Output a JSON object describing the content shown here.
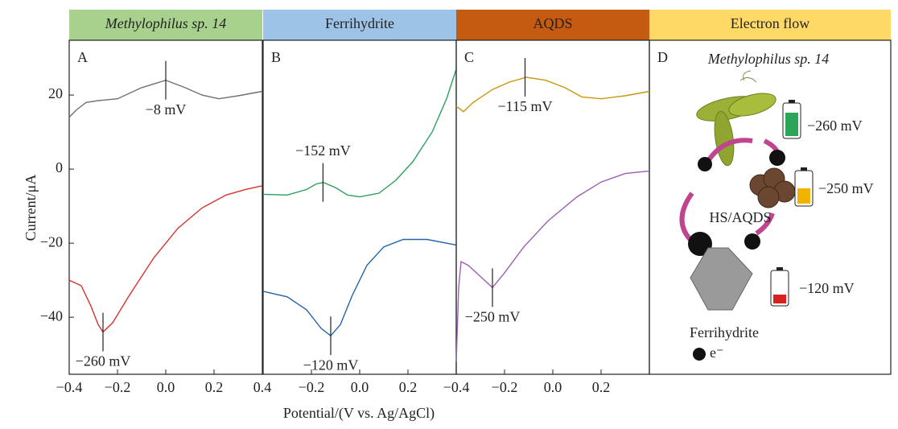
{
  "figure": {
    "y_label": "Current/μA",
    "x_label": "Potential/(V vs. Ag/AgCl)"
  },
  "chart_data": [
    {
      "type": "line",
      "title": "Methylophilus sp. 14",
      "panel": "A",
      "header_color": "#a9d18e",
      "xlim": [
        -0.4,
        0.4
      ],
      "xticks": [
        {
          "value": -0.4,
          "label": "−0.4"
        },
        {
          "value": -0.2,
          "label": "−0.2"
        },
        {
          "value": 0,
          "label": "0.0"
        },
        0.2,
        0.4
      ],
      "ylim": [
        -55.4,
        34.8
      ],
      "yticks": [
        20,
        0,
        {
          "value": -20,
          "label": "−20"
        },
        {
          "value": -40,
          "label": "−40"
        }
      ],
      "series": [
        {
          "color": "#707070",
          "x": [
            -0.4,
            -0.37,
            -0.33,
            -0.28,
            -0.2,
            -0.1,
            0,
            0.08,
            0.15,
            0.22,
            0.3,
            0.4
          ],
          "values": [
            14,
            16,
            18,
            18.5,
            19,
            22,
            24,
            22,
            20,
            19,
            19.8,
            21
          ]
        },
        {
          "color": "#d8312c",
          "x": [
            -0.4,
            -0.35,
            -0.31,
            -0.28,
            -0.26,
            -0.22,
            -0.15,
            -0.05,
            0.05,
            0.15,
            0.25,
            0.33,
            0.4
          ],
          "values": [
            -30,
            -31.5,
            -37,
            -42,
            -44,
            -41.5,
            -34,
            -24,
            -16,
            -10.5,
            -7,
            -5.5,
            -4.5
          ]
        }
      ],
      "annotations": [
        {
          "label": "−8 mV",
          "x": 0,
          "y": 24,
          "position": "below"
        },
        {
          "label": "−260 mV",
          "x": -0.26,
          "y": -44,
          "position": "below"
        }
      ]
    },
    {
      "type": "line",
      "title": "Ferrihydrite",
      "panel": "B",
      "header_color": "#9dc3e6",
      "xlim": [
        -0.4,
        0.4
      ],
      "xticks": [
        {
          "value": -0.2,
          "label": "−0.2"
        },
        {
          "value": 0,
          "label": "0.0"
        },
        0.2
      ],
      "ylim": [
        -55.4,
        34.8
      ],
      "series": [
        {
          "color": "#2aa05a",
          "x": [
            -0.4,
            -0.3,
            -0.22,
            -0.18,
            -0.15,
            -0.1,
            -0.05,
            0,
            0.08,
            0.15,
            0.22,
            0.3,
            0.36,
            0.4
          ],
          "values": [
            -6.8,
            -7,
            -5.5,
            -4,
            -3.6,
            -5,
            -7,
            -7.5,
            -6.5,
            -3,
            2,
            10,
            19,
            27
          ]
        },
        {
          "color": "#2265a8",
          "x": [
            -0.4,
            -0.3,
            -0.22,
            -0.16,
            -0.12,
            -0.08,
            -0.03,
            0.03,
            0.1,
            0.18,
            0.28,
            0.4
          ],
          "values": [
            -33,
            -34.5,
            -38,
            -43,
            -45,
            -42,
            -34,
            -26,
            -21,
            -19,
            -19,
            -20.5
          ]
        }
      ],
      "annotations": [
        {
          "label": "−152 mV",
          "x": -0.152,
          "y": -3.6,
          "position": "above"
        },
        {
          "label": "−120 mV",
          "x": -0.12,
          "y": -45,
          "position": "below"
        }
      ]
    },
    {
      "type": "line",
      "title": "AQDS",
      "panel": "C",
      "header_color": "#c55a11",
      "xlim": [
        -0.4,
        0.4
      ],
      "xticks": [
        {
          "value": -0.4,
          "label": "−0.4"
        },
        {
          "value": -0.2,
          "label": "−0.2"
        },
        {
          "value": 0,
          "label": "0.0"
        },
        0.2
      ],
      "ylim": [
        -55.4,
        34.8
      ],
      "series": [
        {
          "color": "#c9980c",
          "x": [
            -0.4,
            -0.37,
            -0.33,
            -0.25,
            -0.18,
            -0.11,
            -0.03,
            0.05,
            0.12,
            0.2,
            0.3,
            0.4
          ],
          "values": [
            17,
            15.5,
            18,
            21.5,
            23.5,
            24.8,
            24,
            22,
            19.5,
            19,
            19.8,
            21
          ]
        },
        {
          "color": "#9b5fb5",
          "x": [
            -0.4,
            -0.39,
            -0.38,
            -0.35,
            -0.3,
            -0.25,
            -0.2,
            -0.12,
            -0.02,
            0.1,
            0.2,
            0.3,
            0.4
          ],
          "values": [
            -52,
            -32,
            -25,
            -26,
            -29,
            -32,
            -28,
            -21,
            -14,
            -7.5,
            -3.5,
            -1.2,
            -0.5
          ]
        }
      ],
      "annotations": [
        {
          "label": "−115 mV",
          "x": -0.115,
          "y": 24.8,
          "position": "below"
        },
        {
          "label": "−250 mV",
          "x": -0.25,
          "y": -32,
          "position": "below"
        }
      ]
    }
  ],
  "diagram": {
    "header": "Electron flow",
    "panel": "D",
    "header_color": "#ffd966",
    "organism": "Methylophilus sp. 14",
    "potential_1": "−260 mV",
    "potential_2": "−250 mV",
    "shuttle": "HS/AQDS",
    "potential_3": "−120 mV",
    "acceptor": "Ferrihydrite",
    "electron": "e⁻"
  }
}
